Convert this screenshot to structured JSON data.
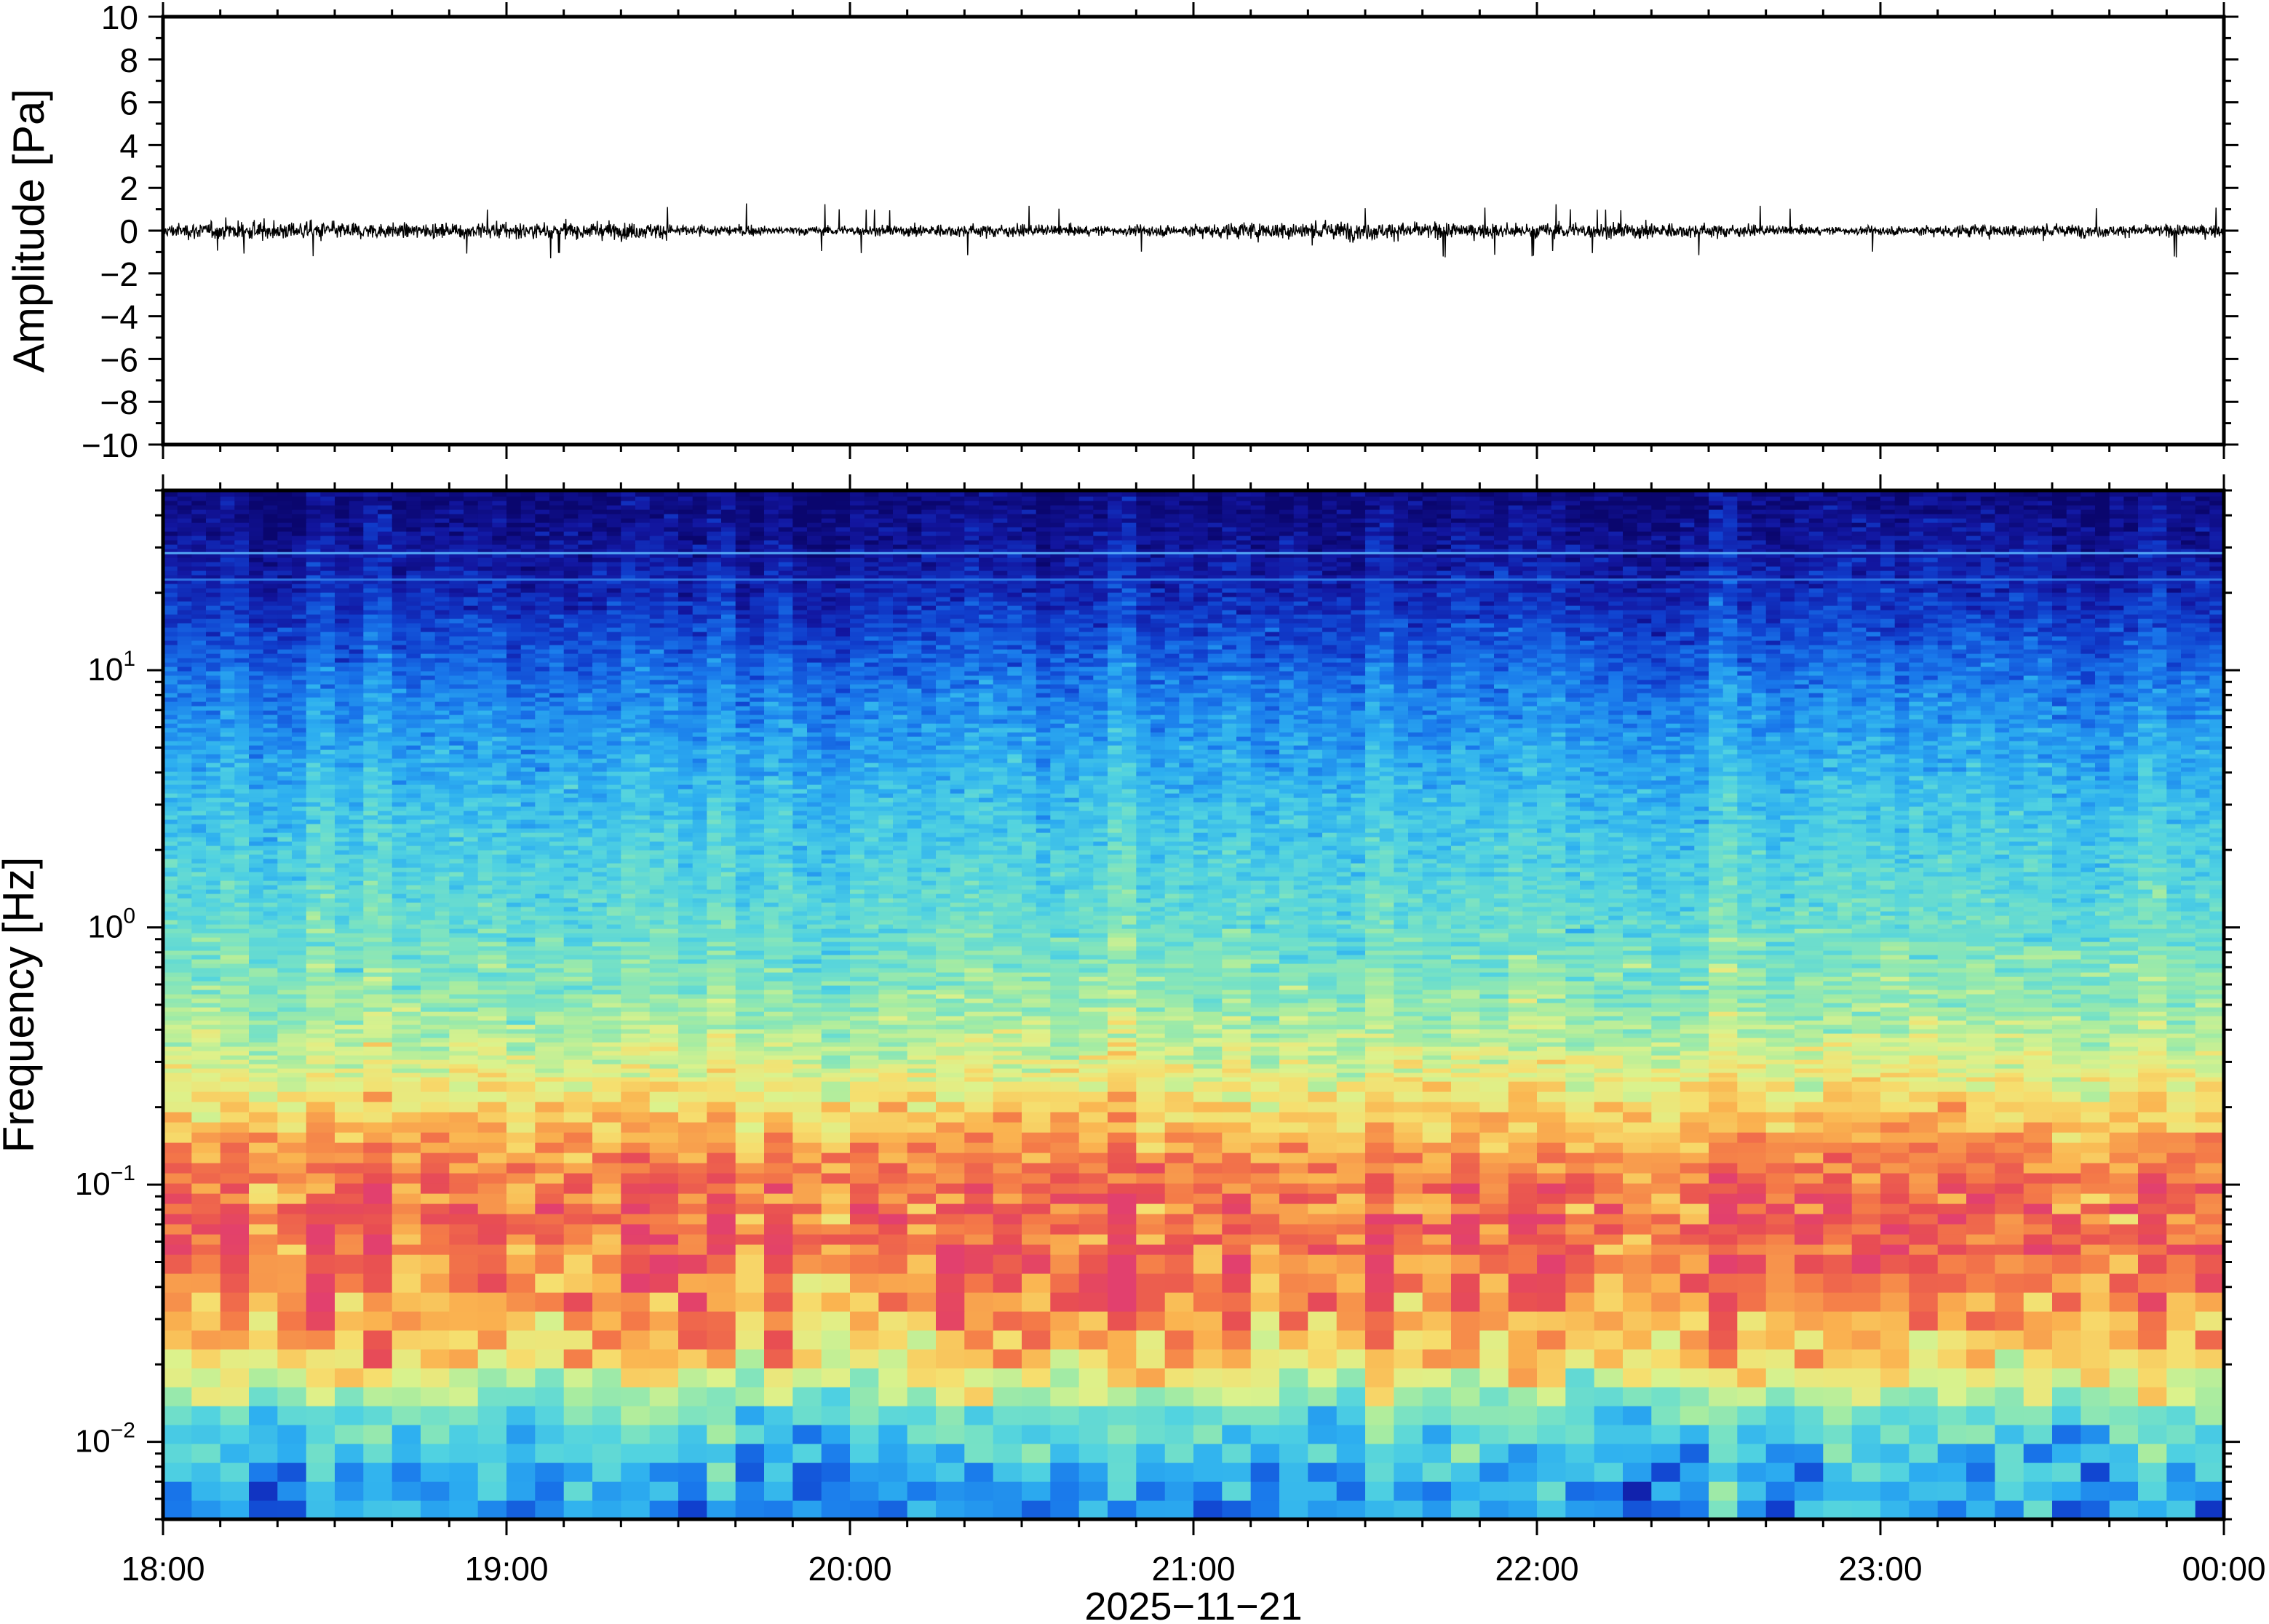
{
  "chart_data": [
    {
      "type": "line",
      "ylabel": "Amplitude [Pa]",
      "ylim": [
        -10,
        10
      ],
      "ytick_labels": [
        "10",
        "8",
        "6",
        "4",
        "2",
        "0",
        "−2",
        "−4",
        "−6",
        "−8",
        "−10"
      ],
      "yticks": [
        10,
        8,
        6,
        4,
        2,
        0,
        -2,
        -4,
        -6,
        -8,
        -10
      ],
      "series": [
        {
          "values_summary": "noise signal centered at 0 Pa",
          "typical_amplitude": 0.4,
          "max_amplitude": 1.3,
          "color": "#000000"
        }
      ],
      "grid": false
    },
    {
      "type": "heatmap",
      "ylabel": "Frequency [Hz]",
      "yscale": "log",
      "ylim": [
        0.005,
        50
      ],
      "ytick_labels": [
        {
          "base": "10",
          "exp": "1",
          "value": 10
        },
        {
          "base": "10",
          "exp": "0",
          "value": 1
        },
        {
          "base": "10",
          "exp": "−1",
          "value": 0.1
        },
        {
          "base": "10",
          "exp": "−2",
          "value": 0.01
        }
      ],
      "xlabel": "2025−11−21",
      "xtick_labels": [
        "18:00",
        "19:00",
        "20:00",
        "21:00",
        "22:00",
        "23:00",
        "00:00"
      ],
      "xlim_hours": [
        18,
        24
      ],
      "colormap": "spectral (blue = low power, red = high power)",
      "power_profile_by_frequency": [
        {
          "frequency_hz": 0.006,
          "level": 0.3
        },
        {
          "frequency_hz": 0.012,
          "level": 0.45
        },
        {
          "frequency_hz": 0.02,
          "level": 0.72
        },
        {
          "frequency_hz": 0.04,
          "level": 0.86
        },
        {
          "frequency_hz": 0.07,
          "level": 0.9
        },
        {
          "frequency_hz": 0.12,
          "level": 0.85
        },
        {
          "frequency_hz": 0.25,
          "level": 0.68
        },
        {
          "frequency_hz": 0.5,
          "level": 0.55
        },
        {
          "frequency_hz": 1.0,
          "level": 0.47
        },
        {
          "frequency_hz": 3.0,
          "level": 0.38
        },
        {
          "frequency_hz": 8.0,
          "level": 0.27
        },
        {
          "frequency_hz": 20.0,
          "level": 0.12
        },
        {
          "frequency_hz": 45.0,
          "level": 0.03
        }
      ],
      "narrowband_lines_hz": [
        28.5,
        22.5
      ],
      "grid": false
    }
  ]
}
